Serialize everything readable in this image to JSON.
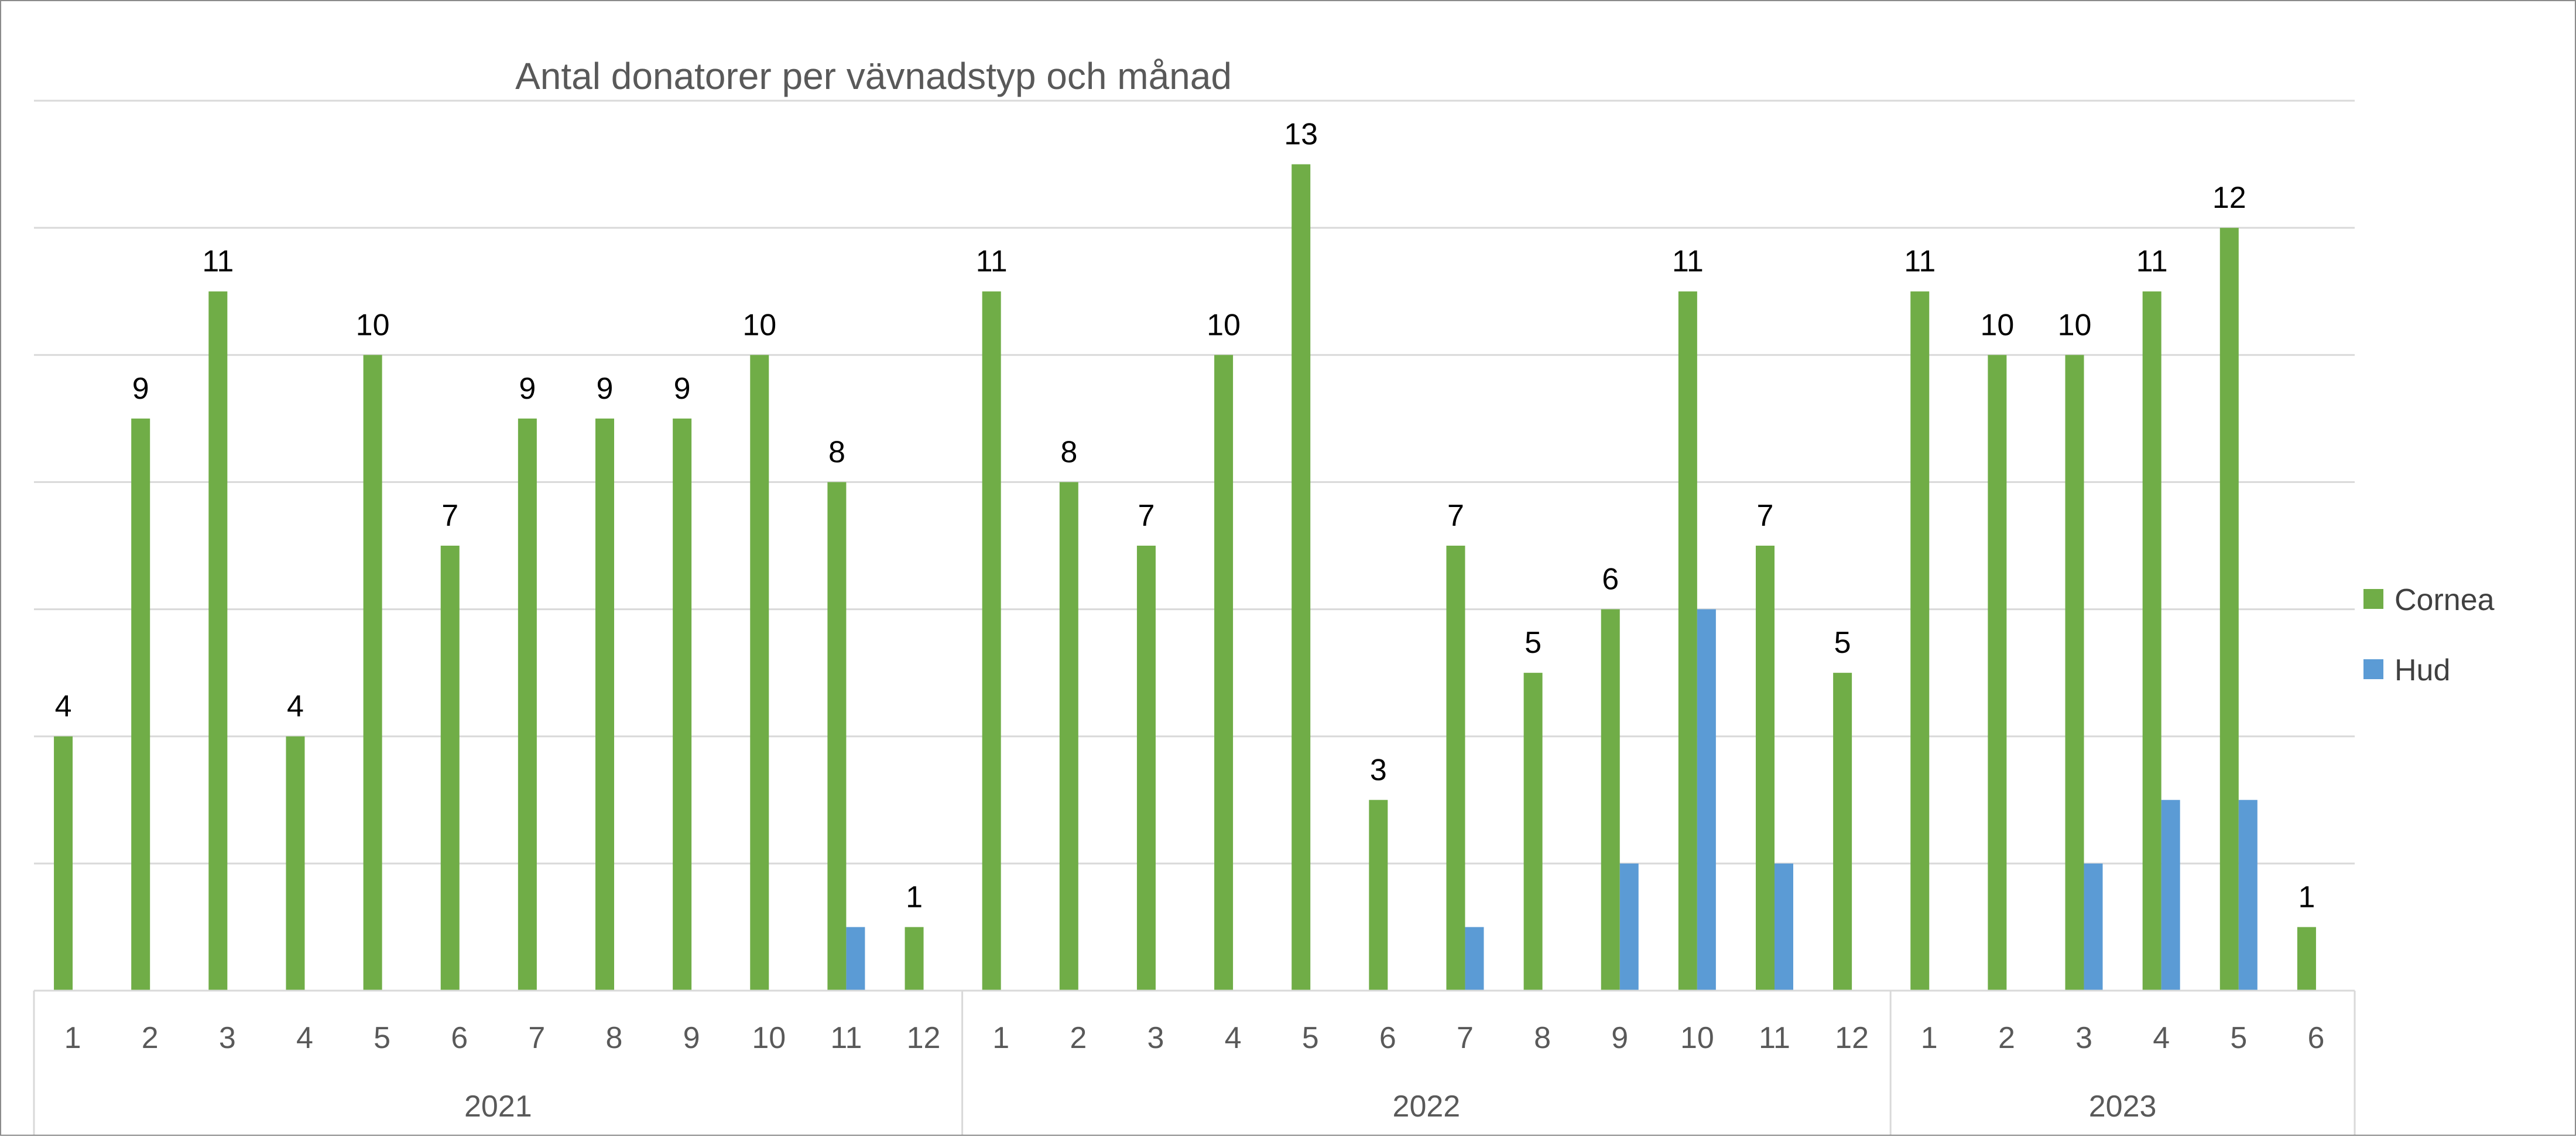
{
  "chart_data": {
    "type": "bar",
    "title": "Antal donatorer per vävnadstyp och månad",
    "xlabel": "",
    "ylabel": "",
    "ylim": [
      0,
      14
    ],
    "grid": true,
    "legend_position": "right",
    "categories": [
      "1",
      "2",
      "3",
      "4",
      "5",
      "6",
      "7",
      "8",
      "9",
      "10",
      "11",
      "12",
      "1",
      "2",
      "3",
      "4",
      "5",
      "6",
      "7",
      "8",
      "9",
      "10",
      "11",
      "12",
      "1",
      "2",
      "3",
      "4",
      "5",
      "6"
    ],
    "groups": [
      {
        "label": "2021",
        "count": 12
      },
      {
        "label": "2022",
        "count": 12
      },
      {
        "label": "2023",
        "count": 6
      }
    ],
    "series": [
      {
        "name": "Cornea",
        "color": "#70ad47",
        "show_labels": true,
        "values": [
          4,
          9,
          11,
          4,
          10,
          7,
          9,
          9,
          9,
          10,
          8,
          1,
          11,
          8,
          7,
          10,
          13,
          3,
          7,
          5,
          6,
          11,
          7,
          5,
          11,
          10,
          10,
          11,
          12,
          1
        ]
      },
      {
        "name": "Hud",
        "color": "#5b9bd5",
        "show_labels": false,
        "values": [
          0,
          0,
          0,
          0,
          0,
          0,
          0,
          0,
          0,
          0,
          1,
          0,
          0,
          0,
          0,
          0,
          0,
          0,
          1,
          0,
          2,
          6,
          2,
          0,
          0,
          0,
          2,
          3,
          3,
          0
        ]
      }
    ]
  }
}
